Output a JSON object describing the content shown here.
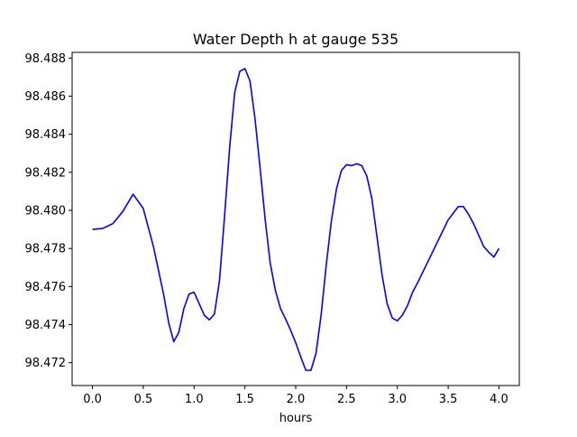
{
  "colors": {
    "background": "#ffffff",
    "axes": "#000000",
    "series_line": "#0000ff"
  },
  "chart_data": {
    "type": "line",
    "title": "Water Depth h at gauge 535",
    "xlabel": "hours",
    "ylabel": "",
    "xlim": [
      -0.2,
      4.2
    ],
    "ylim": [
      98.4708,
      98.4883
    ],
    "xticks": [
      0.0,
      0.5,
      1.0,
      1.5,
      2.0,
      2.5,
      3.0,
      3.5,
      4.0
    ],
    "xtick_labels": [
      "0.0",
      "0.5",
      "1.0",
      "1.5",
      "2.0",
      "2.5",
      "3.0",
      "3.5",
      "4.0"
    ],
    "yticks": [
      98.472,
      98.474,
      98.476,
      98.478,
      98.48,
      98.482,
      98.484,
      98.486,
      98.488
    ],
    "ytick_labels": [
      "98.472",
      "98.474",
      "98.476",
      "98.478",
      "98.480",
      "98.482",
      "98.484",
      "98.486",
      "98.488"
    ],
    "grid": false,
    "legend": "none",
    "series": [
      {
        "color": "#0000ff",
        "x": [
          0.0,
          0.1,
          0.2,
          0.3,
          0.4,
          0.5,
          0.6,
          0.7,
          0.75,
          0.8,
          0.85,
          0.9,
          0.95,
          1.0,
          1.05,
          1.1,
          1.15,
          1.2,
          1.25,
          1.3,
          1.35,
          1.4,
          1.45,
          1.5,
          1.55,
          1.6,
          1.65,
          1.7,
          1.75,
          1.8,
          1.85,
          1.9,
          1.95,
          2.0,
          2.05,
          2.1,
          2.15,
          2.2,
          2.25,
          2.3,
          2.35,
          2.4,
          2.45,
          2.5,
          2.55,
          2.6,
          2.65,
          2.7,
          2.75,
          2.8,
          2.85,
          2.9,
          2.95,
          3.0,
          3.05,
          3.1,
          3.15,
          3.2,
          3.3,
          3.4,
          3.5,
          3.6,
          3.65,
          3.7,
          3.75,
          3.8,
          3.85,
          3.9,
          3.95,
          4.0
        ],
        "y": [
          98.479,
          98.47905,
          98.4793,
          98.47995,
          98.48085,
          98.4801,
          98.4781,
          98.4756,
          98.4741,
          98.4731,
          98.4736,
          98.47485,
          98.4756,
          98.4757,
          98.4751,
          98.4745,
          98.47425,
          98.47455,
          98.4763,
          98.4797,
          98.4833,
          98.4862,
          98.4873,
          98.48745,
          98.4868,
          98.4848,
          98.4822,
          98.4795,
          98.4772,
          98.4758,
          98.47485,
          98.4743,
          98.4737,
          98.47305,
          98.4723,
          98.4716,
          98.4716,
          98.4725,
          98.4745,
          98.4771,
          98.4794,
          98.4811,
          98.4821,
          98.4824,
          98.48235,
          98.48245,
          98.48235,
          98.4818,
          98.4806,
          98.4786,
          98.4766,
          98.4751,
          98.47435,
          98.4742,
          98.4745,
          98.475,
          98.4757,
          98.4762,
          98.4773,
          98.4784,
          98.4795,
          98.4802,
          98.4802,
          98.4798,
          98.4793,
          98.4787,
          98.4781,
          98.4778,
          98.47755,
          98.478
        ]
      }
    ]
  }
}
